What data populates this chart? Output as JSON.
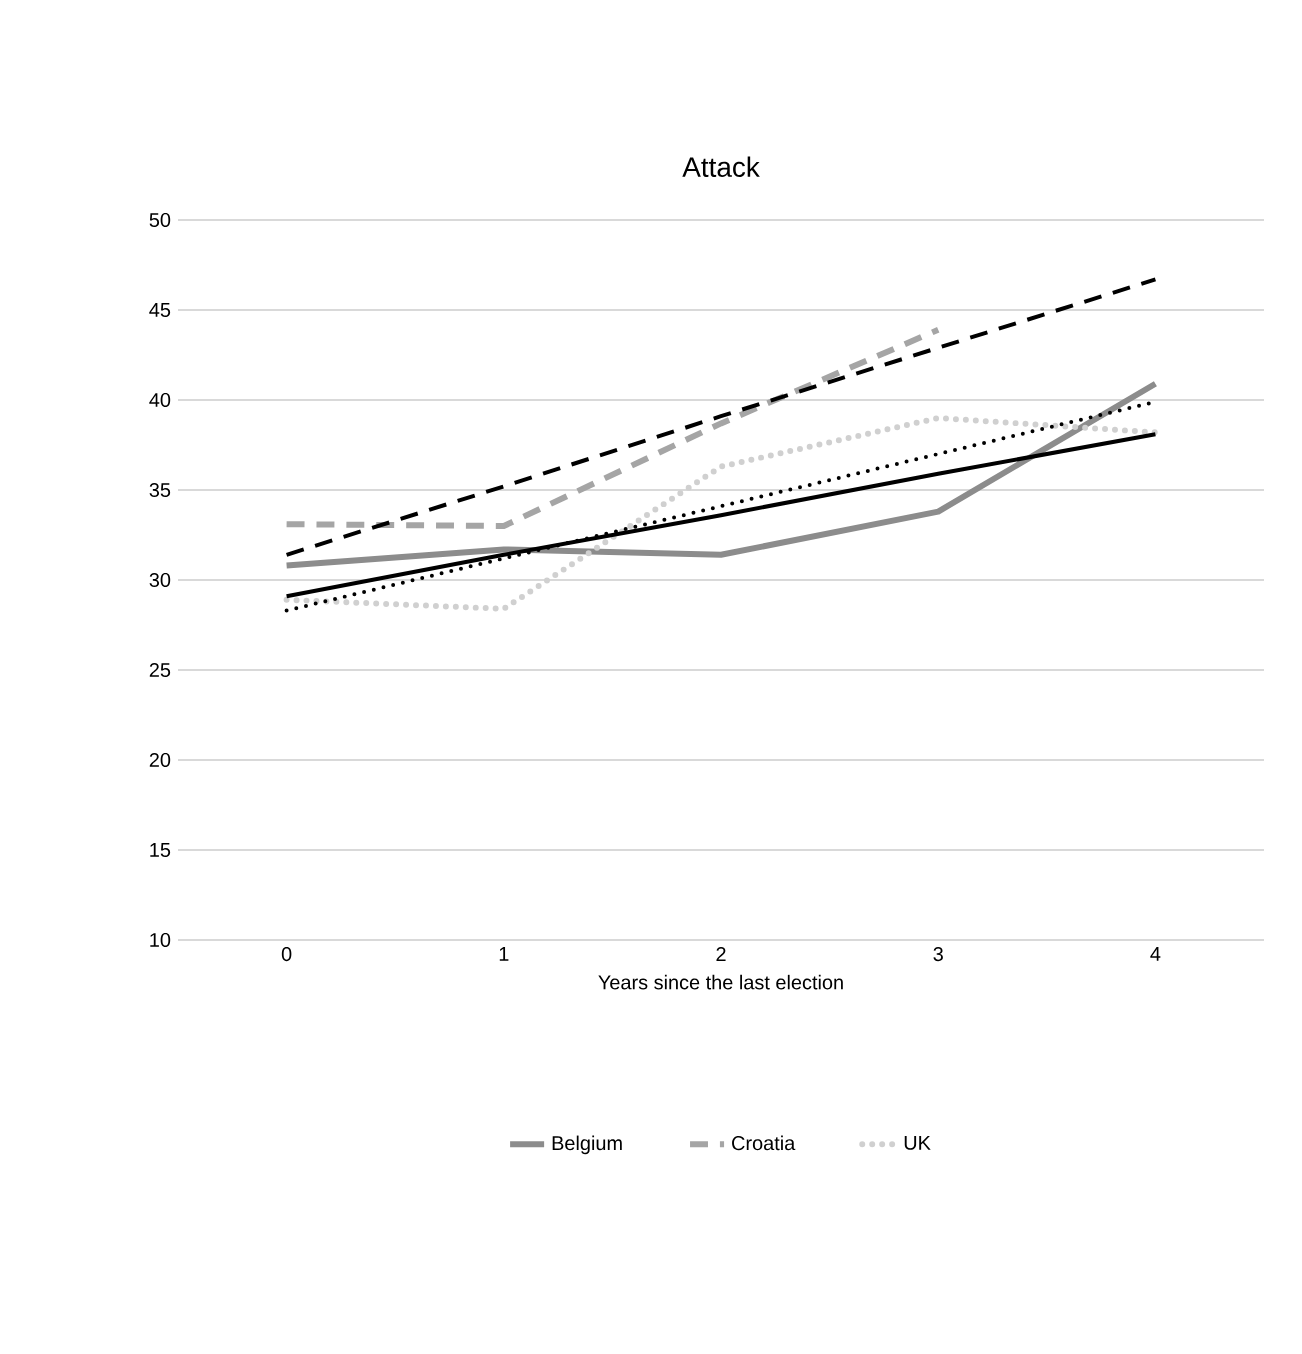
{
  "chart_data": {
    "type": "line",
    "title": "Attack",
    "xlabel": "Years since the last election",
    "categories": [
      "0",
      "1",
      "2",
      "3",
      "4"
    ],
    "series": [
      {
        "name": "Belgium",
        "color": "#8c8c8c",
        "line_style": "solid",
        "values": [
          30.8,
          31.7,
          31.4,
          33.8,
          40.9
        ]
      },
      {
        "name": "Croatia",
        "color": "#a5a5a5",
        "line_style": "dashed",
        "values": [
          33.1,
          33.0,
          38.7,
          43.9,
          null
        ]
      },
      {
        "name": "UK",
        "color": "#d0d0d0",
        "line_style": "dotted",
        "values": [
          28.9,
          28.4,
          36.3,
          39.0,
          38.2
        ]
      },
      {
        "color": "#000000",
        "line_style": "solid",
        "values": [
          29.1,
          31.4,
          33.6,
          35.9,
          38.1
        ]
      },
      {
        "color": "#000000",
        "line_style": "dashed",
        "values": [
          31.4,
          35.2,
          39.1,
          42.9,
          46.7
        ]
      },
      {
        "color": "#000000",
        "line_style": "dotted",
        "values": [
          28.3,
          31.2,
          34.1,
          37.0,
          39.9
        ]
      }
    ],
    "ylim": [
      10,
      50
    ],
    "yticks": [
      10,
      15,
      20,
      25,
      30,
      35,
      40,
      45,
      50
    ],
    "grid": "y",
    "legend": "bottom"
  }
}
